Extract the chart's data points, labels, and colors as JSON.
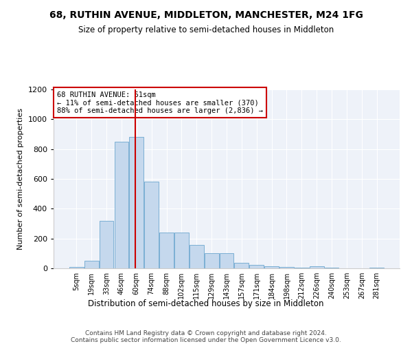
{
  "title": "68, RUTHIN AVENUE, MIDDLETON, MANCHESTER, M24 1FG",
  "subtitle": "Size of property relative to semi-detached houses in Middleton",
  "xlabel": "Distribution of semi-detached houses by size in Middleton",
  "ylabel": "Number of semi-detached properties",
  "bar_labels": [
    "5sqm",
    "19sqm",
    "33sqm",
    "46sqm",
    "60sqm",
    "74sqm",
    "88sqm",
    "102sqm",
    "115sqm",
    "129sqm",
    "143sqm",
    "157sqm",
    "171sqm",
    "184sqm",
    "198sqm",
    "212sqm",
    "226sqm",
    "240sqm",
    "253sqm",
    "267sqm",
    "281sqm"
  ],
  "bar_values": [
    8,
    50,
    320,
    850,
    880,
    580,
    240,
    240,
    155,
    100,
    100,
    37,
    22,
    15,
    8,
    5,
    12,
    5,
    0,
    0,
    5
  ],
  "bar_color": "#c5d8ed",
  "bar_edge_color": "#7bafd4",
  "vline_position": 3.93,
  "annotation_line1": "68 RUTHIN AVENUE: 61sqm",
  "annotation_line2": "← 11% of semi-detached houses are smaller (370)",
  "annotation_line3": "88% of semi-detached houses are larger (2,836) →",
  "vline_color": "#cc0000",
  "box_edge_color": "#cc0000",
  "ylim": [
    0,
    1200
  ],
  "yticks": [
    0,
    200,
    400,
    600,
    800,
    1000,
    1200
  ],
  "bg_color": "#eef2f9",
  "grid_color": "#ffffff",
  "footer_line1": "Contains HM Land Registry data © Crown copyright and database right 2024.",
  "footer_line2": "Contains public sector information licensed under the Open Government Licence v3.0."
}
